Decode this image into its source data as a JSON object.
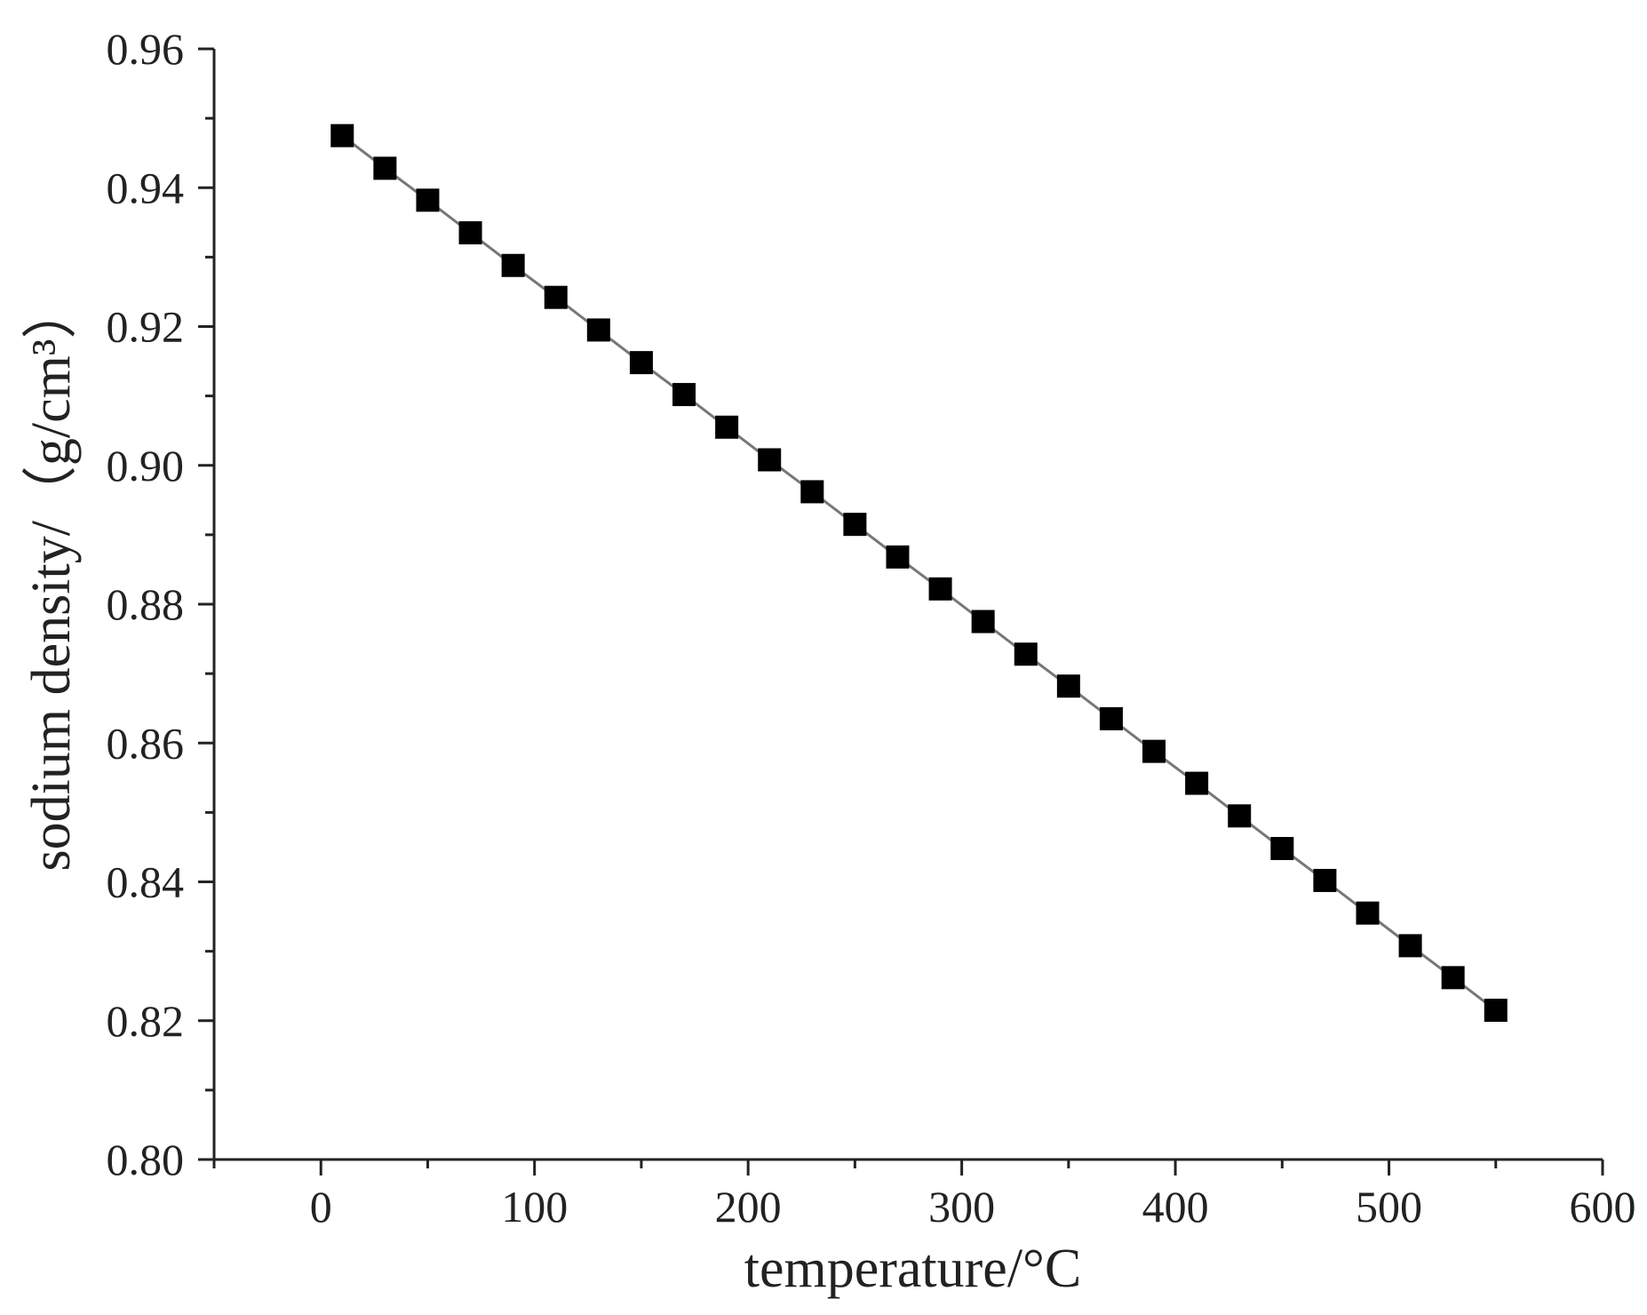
{
  "chart_data": {
    "type": "line",
    "title": "",
    "xlabel": "temperature/°C",
    "ylabel": "sodium density/（g/cm³）",
    "xlim": [
      -50,
      600
    ],
    "ylim": [
      0.8,
      0.96
    ],
    "x_ticks": [
      0,
      100,
      200,
      300,
      400,
      500,
      600
    ],
    "x_tick_labels": [
      "0",
      "100",
      "200",
      "300",
      "400",
      "500",
      "600"
    ],
    "y_ticks": [
      0.8,
      0.82,
      0.84,
      0.86,
      0.88,
      0.9,
      0.92,
      0.94,
      0.96
    ],
    "y_tick_labels": [
      "0.80",
      "0.82",
      "0.84",
      "0.86",
      "0.88",
      "0.90",
      "0.92",
      "0.94",
      "0.96"
    ],
    "grid": false,
    "legend": "none",
    "series": [
      {
        "marker": "square",
        "marker_color": "#000000",
        "line_color": "#777777",
        "x": [
          10,
          30,
          50,
          70,
          90,
          110,
          130,
          150,
          170,
          190,
          210,
          230,
          250,
          270,
          290,
          310,
          330,
          350,
          370,
          390,
          410,
          430,
          450,
          470,
          490,
          510,
          530,
          550
        ],
        "y": [
          0.9475,
          0.9428,
          0.9382,
          0.9335,
          0.9288,
          0.9242,
          0.9195,
          0.9148,
          0.9102,
          0.9055,
          0.9008,
          0.8962,
          0.8915,
          0.8868,
          0.8822,
          0.8775,
          0.8728,
          0.8682,
          0.8635,
          0.8588,
          0.8542,
          0.8495,
          0.8448,
          0.8402,
          0.8355,
          0.8308,
          0.8262,
          0.8215
        ]
      }
    ]
  }
}
